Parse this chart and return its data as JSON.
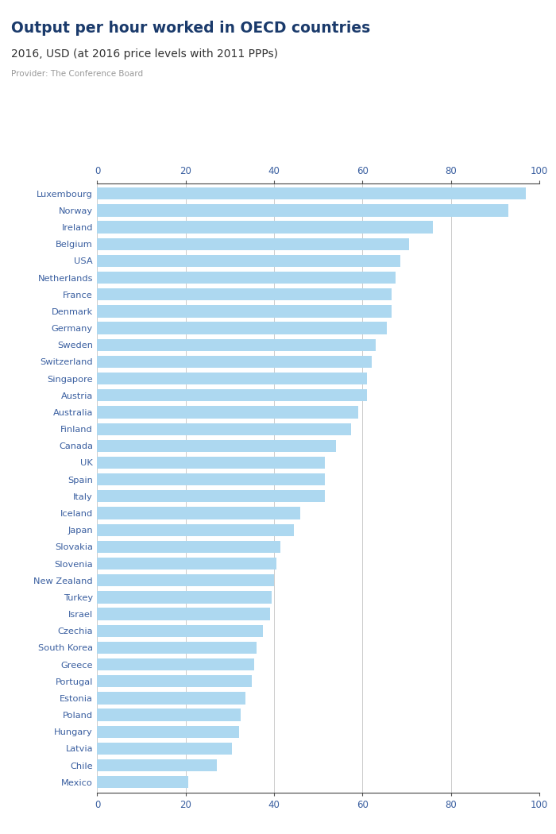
{
  "title": "Output per hour worked in OECD countries",
  "subtitle": "2016, USD (at 2016 price levels with 2011 PPPs)",
  "provider": "Provider: The Conference Board",
  "bar_color": "#add8f0",
  "background_color": "#ffffff",
  "title_color": "#1a3a6b",
  "subtitle_color": "#333333",
  "provider_color": "#999999",
  "tick_label_color": "#3a5fa0",
  "gridline_color": "#cccccc",
  "logo_bg": "#4a6fad",
  "countries": [
    "Luxembourg",
    "Norway",
    "Ireland",
    "Belgium",
    "USA",
    "Netherlands",
    "France",
    "Denmark",
    "Germany",
    "Sweden",
    "Switzerland",
    "Singapore",
    "Austria",
    "Australia",
    "Finland",
    "Canada",
    "UK",
    "Spain",
    "Italy",
    "Iceland",
    "Japan",
    "Slovakia",
    "Slovenia",
    "New Zealand",
    "Turkey",
    "Israel",
    "Czechia",
    "South Korea",
    "Greece",
    "Portugal",
    "Estonia",
    "Poland",
    "Hungary",
    "Latvia",
    "Chile",
    "Mexico"
  ],
  "values": [
    97.0,
    93.0,
    76.0,
    70.5,
    68.5,
    67.5,
    66.5,
    66.5,
    65.5,
    63.0,
    62.0,
    61.0,
    61.0,
    59.0,
    57.5,
    54.0,
    51.5,
    51.5,
    51.5,
    46.0,
    44.5,
    41.5,
    40.5,
    40.0,
    39.5,
    39.0,
    37.5,
    36.0,
    35.5,
    35.0,
    33.5,
    32.5,
    32.0,
    30.5,
    27.0,
    20.5
  ],
  "xlim": [
    0,
    100
  ],
  "xticks": [
    0,
    20,
    40,
    60,
    80,
    100
  ],
  "figsize": [
    7.0,
    10.5
  ],
  "dpi": 100
}
